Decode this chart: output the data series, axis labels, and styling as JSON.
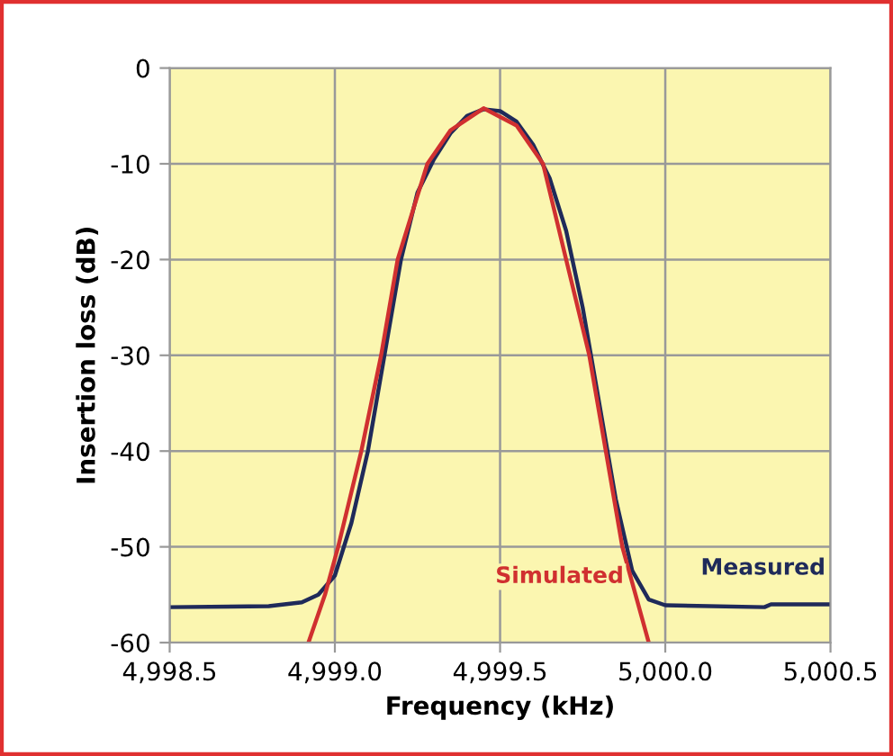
{
  "chart_data": {
    "type": "line",
    "xlabel": "Frequency (kHz)",
    "ylabel": "Insertion loss (dB)",
    "xlim": [
      4998.5,
      5000.5
    ],
    "xticks": [
      {
        "value": 4998.5,
        "label": "4,998.5"
      },
      {
        "value": 4999.0,
        "label": "4,999.0"
      },
      {
        "value": 4999.5,
        "label": "4,999.5"
      },
      {
        "value": 5000.0,
        "label": "5,000.0"
      },
      {
        "value": 5000.5,
        "label": "5,000.5"
      }
    ],
    "ylim": [
      -60,
      0
    ],
    "yticks": [
      -60,
      -50,
      -40,
      -30,
      -20,
      -10,
      0
    ],
    "grid": true,
    "legend": false,
    "marker": "none",
    "line_style": "solid",
    "series": [
      {
        "name": "Measured",
        "color": "#1f2a5a",
        "x": [
          4998.5,
          4998.8,
          4998.9,
          4998.95,
          4999.0,
          4999.05,
          4999.1,
          4999.15,
          4999.2,
          4999.25,
          4999.3,
          4999.35,
          4999.4,
          4999.45,
          4999.5,
          4999.55,
          4999.6,
          4999.65,
          4999.7,
          4999.75,
          4999.8,
          4999.85,
          4999.9,
          4999.95,
          5000.0,
          5000.3,
          5000.32,
          5000.5
        ],
        "values": [
          -56.3,
          -56.2,
          -55.8,
          -55.0,
          -53.0,
          -47.5,
          -40.0,
          -30.0,
          -20.0,
          -13.0,
          -9.5,
          -6.8,
          -5.0,
          -4.3,
          -4.5,
          -5.6,
          -8.0,
          -11.5,
          -17.0,
          -25.0,
          -35.0,
          -45.0,
          -52.5,
          -55.5,
          -56.1,
          -56.3,
          -56.0,
          -56.0
        ]
      },
      {
        "name": "Simulated",
        "color": "#d03030",
        "x": [
          4998.92,
          4998.97,
          4999.01,
          4999.08,
          4999.14,
          4999.19,
          4999.28,
          4999.35,
          4999.45,
          4999.55,
          4999.63,
          4999.7,
          4999.77,
          4999.82,
          4999.87,
          4999.95
        ],
        "values": [
          -60,
          -55,
          -50,
          -40,
          -30,
          -20,
          -10,
          -6.5,
          -4.2,
          -6.0,
          -10,
          -20,
          -30,
          -40,
          -50,
          -60
        ]
      }
    ]
  }
}
